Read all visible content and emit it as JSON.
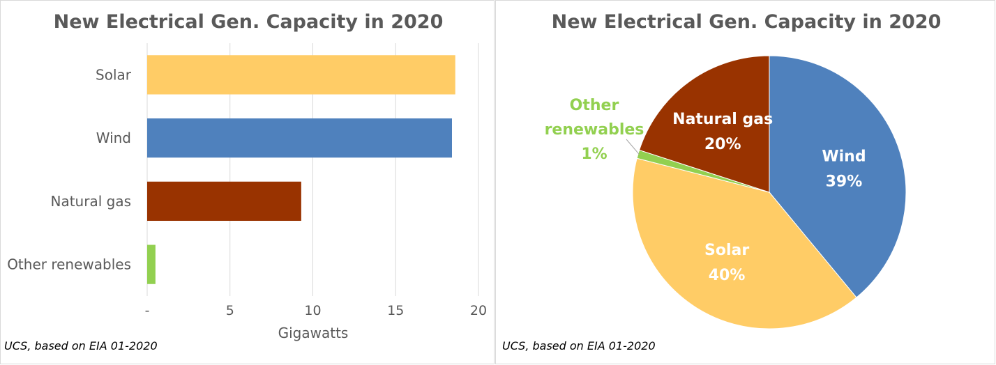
{
  "chart_data": [
    {
      "type": "bar",
      "orientation": "horizontal",
      "title": "New Electrical Gen. Capacity in 2020",
      "categories": [
        "Solar",
        "Wind",
        "Natural gas",
        "Other renewables"
      ],
      "values": [
        18.6,
        18.4,
        9.3,
        0.5
      ],
      "colors": [
        "#ffcc66",
        "#4f81bd",
        "#993300",
        "#92d050"
      ],
      "xlabel": "Gigawatts",
      "xlim": [
        0,
        20
      ],
      "xticks": [
        {
          "value": 0,
          "label": "-"
        },
        {
          "value": 5,
          "label": "5"
        },
        {
          "value": 10,
          "label": "10"
        },
        {
          "value": 15,
          "label": "15"
        },
        {
          "value": 20,
          "label": "20"
        }
      ],
      "grid": true,
      "source": "UCS, based on EIA 01-2020"
    },
    {
      "type": "pie",
      "title": "New Electrical Gen. Capacity in 2020",
      "slices": [
        {
          "name": "Wind",
          "value": 39,
          "label": "39%",
          "color": "#4f81bd",
          "label_color": "#ffffff"
        },
        {
          "name": "Solar",
          "value": 40,
          "label": "40%",
          "color": "#ffcc66",
          "label_color": "#ffffff"
        },
        {
          "name": "Other renewables",
          "value": 1,
          "label": "1%",
          "color": "#92d050",
          "label_color": "#92d050"
        },
        {
          "name": "Natural gas",
          "value": 20,
          "label": "20%",
          "color": "#993300",
          "label_color": "#ffffff"
        }
      ],
      "other_label_lines": [
        "Other",
        "renewables"
      ],
      "source": "UCS, based on EIA 01-2020"
    }
  ]
}
